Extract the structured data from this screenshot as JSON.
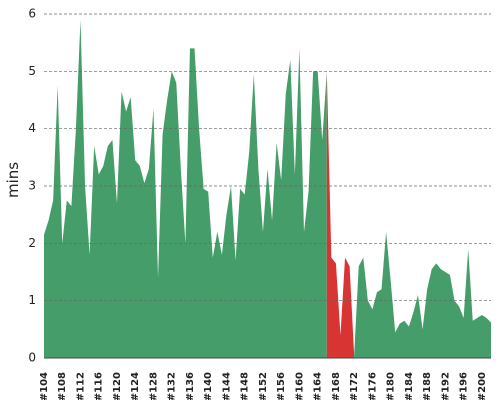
{
  "chart_data": {
    "type": "area",
    "ylabel": "mins",
    "categories": [
      "#104",
      null,
      null,
      null,
      "#108",
      null,
      null,
      null,
      "#112",
      null,
      null,
      null,
      "#116",
      null,
      null,
      null,
      "#120",
      null,
      null,
      null,
      "#124",
      null,
      null,
      null,
      "#128",
      null,
      null,
      null,
      "#132",
      null,
      null,
      null,
      "#136",
      null,
      null,
      null,
      "#140",
      null,
      null,
      null,
      "#144",
      null,
      null,
      null,
      "#148",
      null,
      null,
      null,
      "#152",
      null,
      null,
      null,
      "#156",
      null,
      null,
      null,
      "#160",
      null,
      null,
      null,
      "#164",
      null,
      null,
      null,
      "#168",
      null,
      null,
      null,
      "#172",
      null,
      null,
      null,
      "#176",
      null,
      null,
      null,
      "#180",
      null,
      null,
      null,
      "#184",
      null,
      null,
      null,
      "#188",
      null,
      null,
      null,
      "#192",
      null,
      null,
      null,
      "#196",
      null,
      null,
      null,
      "#200",
      null,
      null
    ],
    "values": [
      2.15,
      2.4,
      2.75,
      4.75,
      2.0,
      2.75,
      2.65,
      4.0,
      5.9,
      3.0,
      1.8,
      3.7,
      3.2,
      3.35,
      3.7,
      3.8,
      2.7,
      4.65,
      4.3,
      4.55,
      3.45,
      3.35,
      3.05,
      3.3,
      4.35,
      1.4,
      3.9,
      4.5,
      5.0,
      4.8,
      3.3,
      2.0,
      5.4,
      5.4,
      4.0,
      2.95,
      2.9,
      1.75,
      2.2,
      1.8,
      2.5,
      3.0,
      1.7,
      2.95,
      2.85,
      3.6,
      4.95,
      3.3,
      2.2,
      3.3,
      2.4,
      3.75,
      3.1,
      4.6,
      5.2,
      3.2,
      5.4,
      2.2,
      2.9,
      5.0,
      5.0,
      3.8,
      5.0,
      1.75,
      1.65,
      0.4,
      1.75,
      1.6,
      0.05,
      1.6,
      1.75,
      1.0,
      0.85,
      1.15,
      1.2,
      2.2,
      1.35,
      0.45,
      0.6,
      0.65,
      0.55,
      0.8,
      1.1,
      0.5,
      1.2,
      1.55,
      1.65,
      1.55,
      1.5,
      1.45,
      1.0,
      0.9,
      0.7,
      1.9,
      0.65,
      0.7,
      0.75,
      0.7,
      0.62
    ],
    "colors": [
      "#459e6a",
      "#459e6a",
      "#459e6a",
      "#459e6a",
      "#459e6a",
      "#459e6a",
      "#459e6a",
      "#459e6a",
      "#459e6a",
      "#459e6a",
      "#459e6a",
      "#459e6a",
      "#459e6a",
      "#459e6a",
      "#459e6a",
      "#459e6a",
      "#459e6a",
      "#459e6a",
      "#459e6a",
      "#459e6a",
      "#459e6a",
      "#459e6a",
      "#459e6a",
      "#459e6a",
      "#459e6a",
      "#459e6a",
      "#459e6a",
      "#459e6a",
      "#459e6a",
      "#459e6a",
      "#459e6a",
      "#459e6a",
      "#459e6a",
      "#459e6a",
      "#459e6a",
      "#459e6a",
      "#459e6a",
      "#459e6a",
      "#459e6a",
      "#459e6a",
      "#459e6a",
      "#459e6a",
      "#459e6a",
      "#459e6a",
      "#459e6a",
      "#459e6a",
      "#459e6a",
      "#459e6a",
      "#459e6a",
      "#459e6a",
      "#459e6a",
      "#459e6a",
      "#459e6a",
      "#459e6a",
      "#459e6a",
      "#459e6a",
      "#459e6a",
      "#459e6a",
      "#459e6a",
      "#459e6a",
      "#459e6a",
      "#459e6a",
      "#459e6a",
      "#d83434",
      "#d83434",
      "#d83434",
      "#d83434",
      "#d83434",
      "#d83434",
      "#459e6a",
      "#459e6a",
      "#459e6a",
      "#459e6a",
      "#459e6a",
      "#459e6a",
      "#459e6a",
      "#459e6a",
      "#459e6a",
      "#459e6a",
      "#459e6a",
      "#459e6a",
      "#459e6a",
      "#459e6a",
      "#459e6a",
      "#459e6a",
      "#459e6a",
      "#459e6a",
      "#459e6a",
      "#459e6a",
      "#459e6a",
      "#459e6a",
      "#459e6a",
      "#459e6a",
      "#459e6a",
      "#459e6a",
      "#459e6a",
      "#459e6a",
      "#459e6a",
      "#459e6a"
    ],
    "ylim": [
      0,
      6
    ],
    "yticks": [
      0,
      1,
      2,
      3,
      4,
      5,
      6
    ],
    "grid": true
  }
}
